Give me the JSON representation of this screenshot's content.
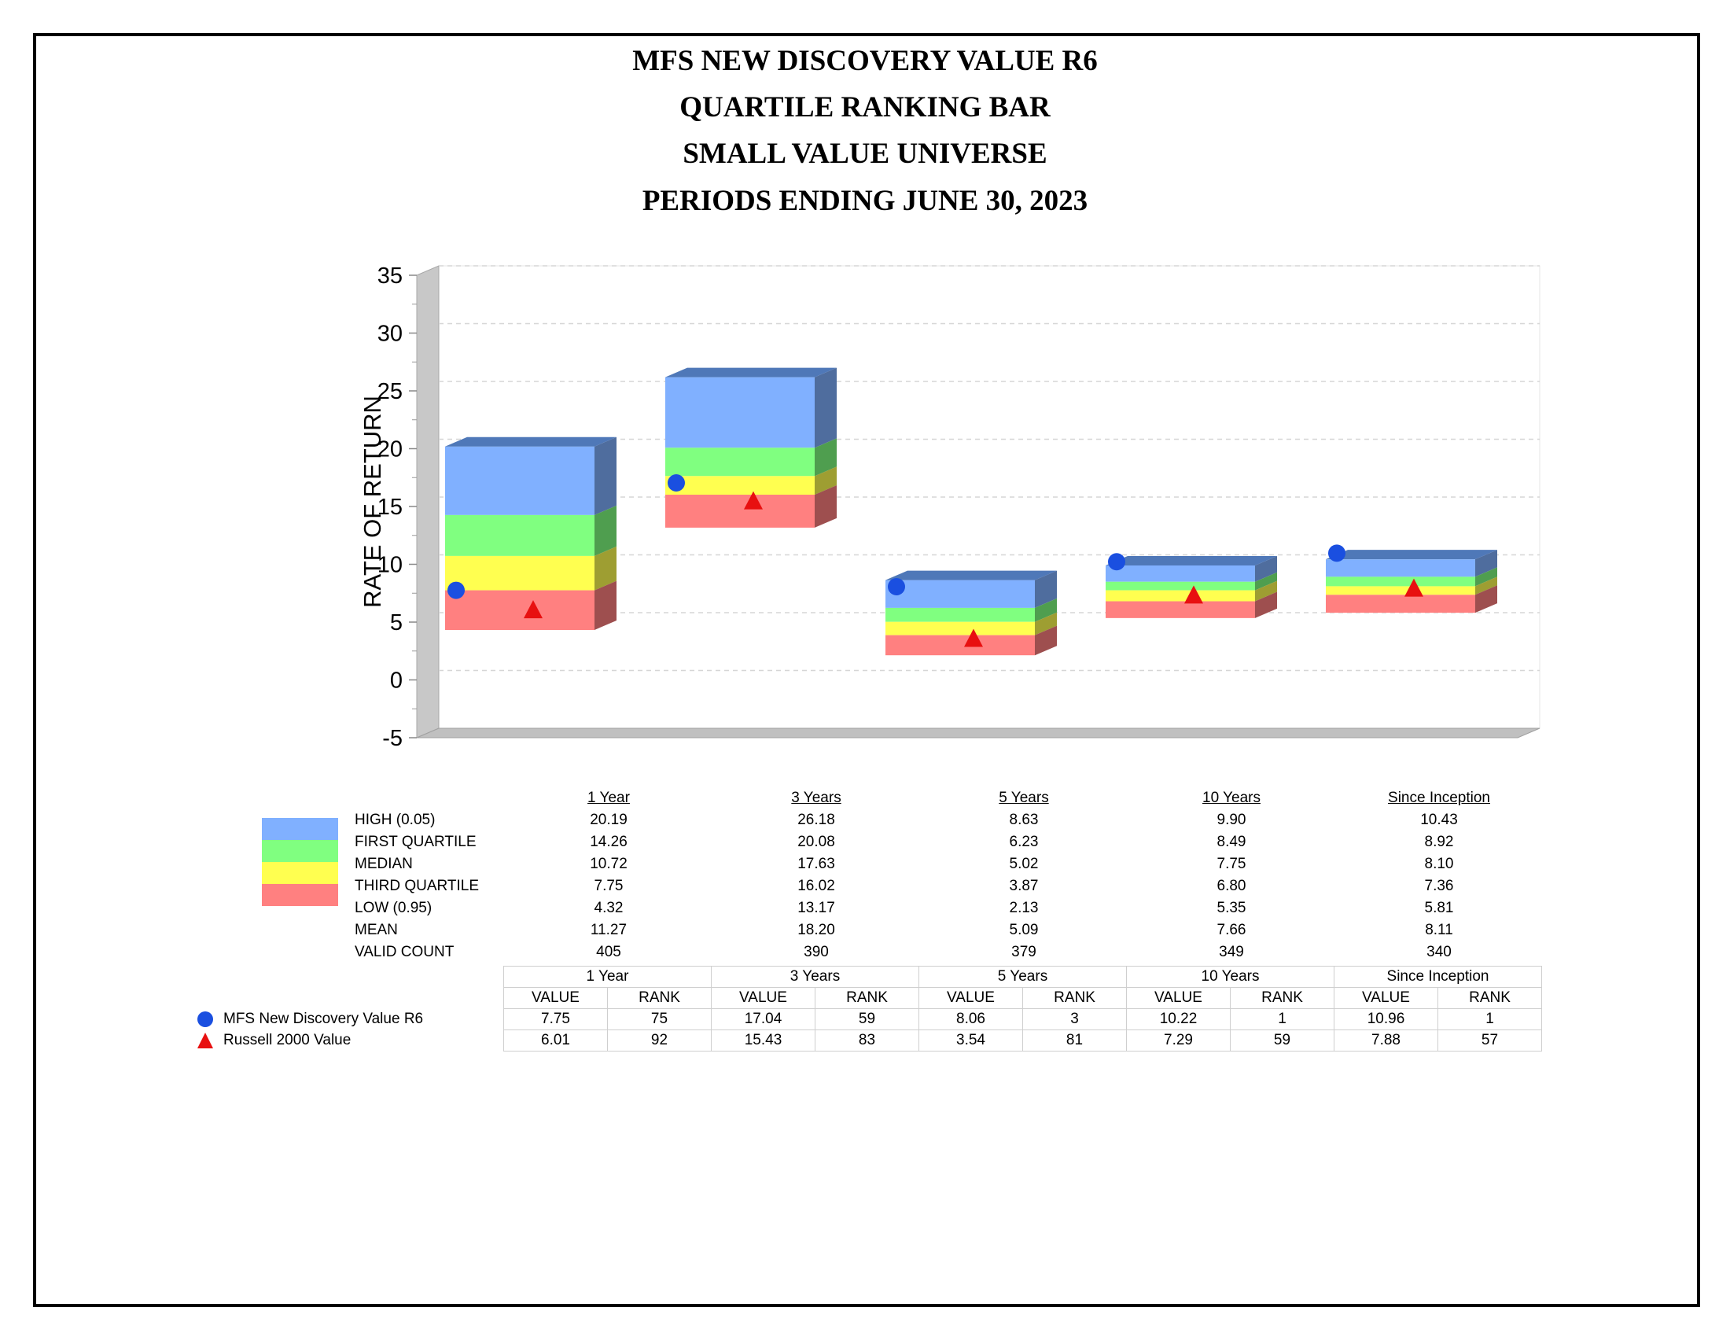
{
  "titles": [
    "MFS NEW DISCOVERY VALUE R6",
    "QUARTILE RANKING BAR",
    "SMALL VALUE UNIVERSE",
    "PERIODS ENDING JUNE 30, 2023"
  ],
  "colors": {
    "high": "#80b0ff",
    "first_quartile": "#80ff80",
    "median": "#ffff50",
    "third_quartile": "#ff8080",
    "fund_marker": "#1a4fe0",
    "benchmark_marker": "#e81010"
  },
  "chart_data": {
    "type": "bar",
    "ylabel": "RATE OF RETURN",
    "ylim": [
      -5,
      35
    ],
    "yticks": [
      "35",
      "30",
      "25",
      "20",
      "15",
      "10",
      "5",
      "0",
      "-5"
    ],
    "grid": true,
    "categories": [
      "1 Year",
      "3 Years",
      "5 Years",
      "10 Years",
      "Since Inception"
    ],
    "stats": [
      {
        "label": "HIGH (0.05)",
        "values": [
          "20.19",
          "26.18",
          "8.63",
          "9.90",
          "10.43"
        ]
      },
      {
        "label": "FIRST QUARTILE",
        "values": [
          "14.26",
          "20.08",
          "6.23",
          "8.49",
          "8.92"
        ]
      },
      {
        "label": "MEDIAN",
        "values": [
          "10.72",
          "17.63",
          "5.02",
          "7.75",
          "8.10"
        ]
      },
      {
        "label": "THIRD QUARTILE",
        "values": [
          "7.75",
          "16.02",
          "3.87",
          "6.80",
          "7.36"
        ]
      },
      {
        "label": "LOW (0.95)",
        "values": [
          "4.32",
          "13.17",
          "2.13",
          "5.35",
          "5.81"
        ]
      },
      {
        "label": "MEAN",
        "values": [
          "11.27",
          "18.20",
          "5.09",
          "7.66",
          "8.11"
        ]
      },
      {
        "label": "VALID COUNT",
        "values": [
          "405",
          "390",
          "379",
          "349",
          "340"
        ]
      }
    ],
    "value_header": "VALUE",
    "rank_header": "RANK",
    "series": [
      {
        "name": "MFS New Discovery Value R6",
        "marker": "circle",
        "values": [
          "7.75",
          "17.04",
          "8.06",
          "10.22",
          "10.96"
        ],
        "ranks": [
          "75",
          "59",
          "3",
          "1",
          "1"
        ]
      },
      {
        "name": "Russell 2000 Value",
        "marker": "triangle",
        "values": [
          "6.01",
          "15.43",
          "3.54",
          "7.29",
          "7.88"
        ],
        "ranks": [
          "92",
          "83",
          "81",
          "59",
          "57"
        ]
      }
    ]
  }
}
